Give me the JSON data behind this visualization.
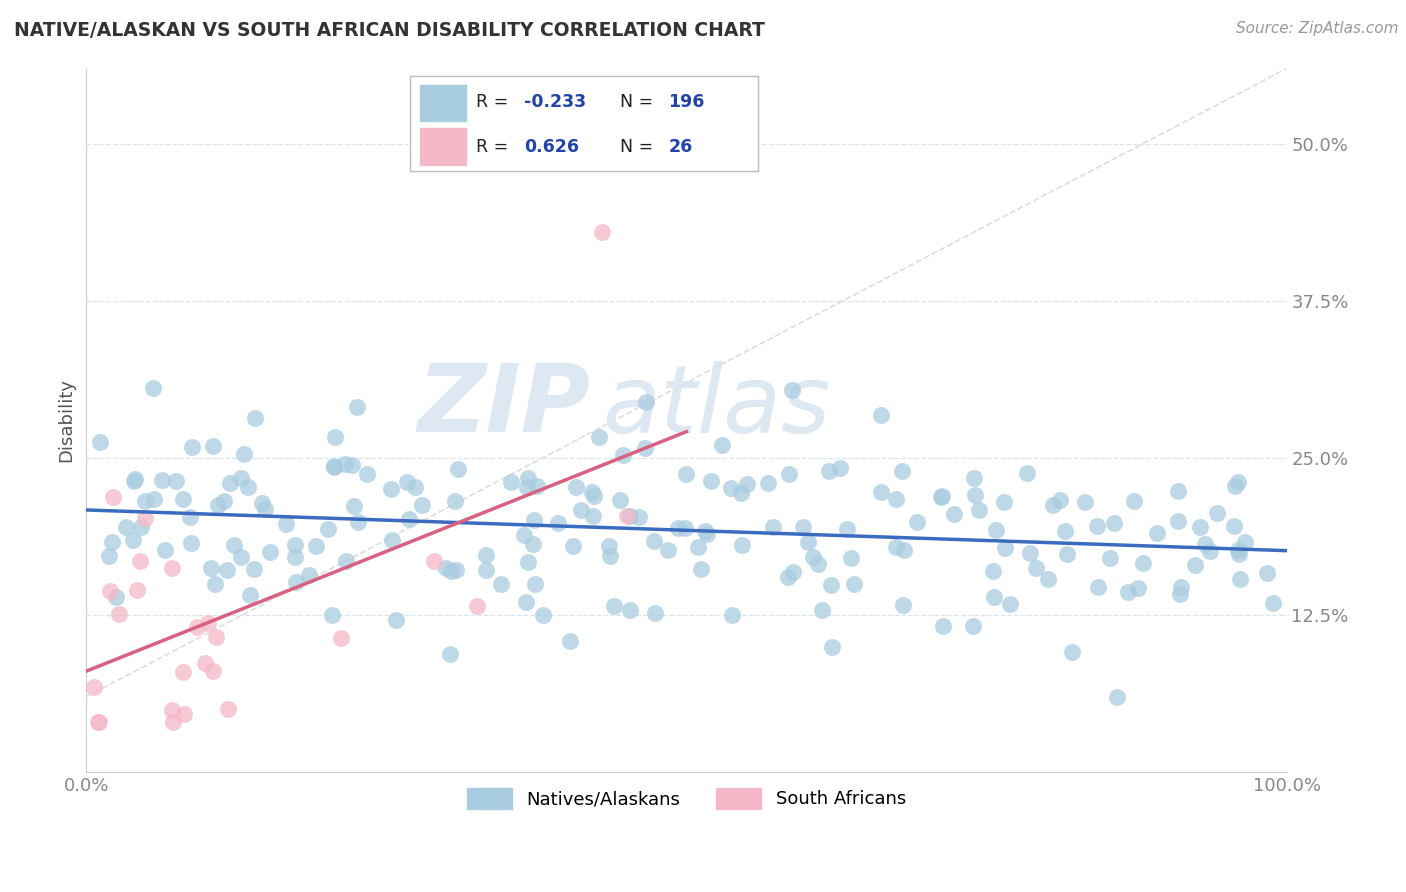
{
  "title": "NATIVE/ALASKAN VS SOUTH AFRICAN DISABILITY CORRELATION CHART",
  "source": "Source: ZipAtlas.com",
  "ylabel": "Disability",
  "xlim": [
    0.0,
    1.0
  ],
  "ylim": [
    0.0,
    0.56
  ],
  "yticks": [
    0.125,
    0.25,
    0.375,
    0.5
  ],
  "ytick_labels": [
    "12.5%",
    "25.0%",
    "37.5%",
    "50.0%"
  ],
  "blue_scatter_color": "#a8cce0",
  "blue_scatter_edge": "#a8cce0",
  "pink_scatter_color": "#f5b8c8",
  "pink_scatter_edge": "#f5b8c8",
  "trend_blue_color": "#3a6bbf",
  "trend_pink_color": "#d96080",
  "ref_line_color": "#dddddd",
  "grid_color": "#d8e4f0",
  "tick_color": "#4472c4",
  "watermark": "ZIPatlas",
  "watermark_color": "#d8e4f0",
  "blue_r": -0.233,
  "blue_n": 196,
  "pink_r": 0.626,
  "pink_n": 26,
  "legend_blue_label": "Natives/Alaskans",
  "legend_pink_label": "South Africans",
  "figsize": [
    14.06,
    8.92
  ],
  "dpi": 100
}
